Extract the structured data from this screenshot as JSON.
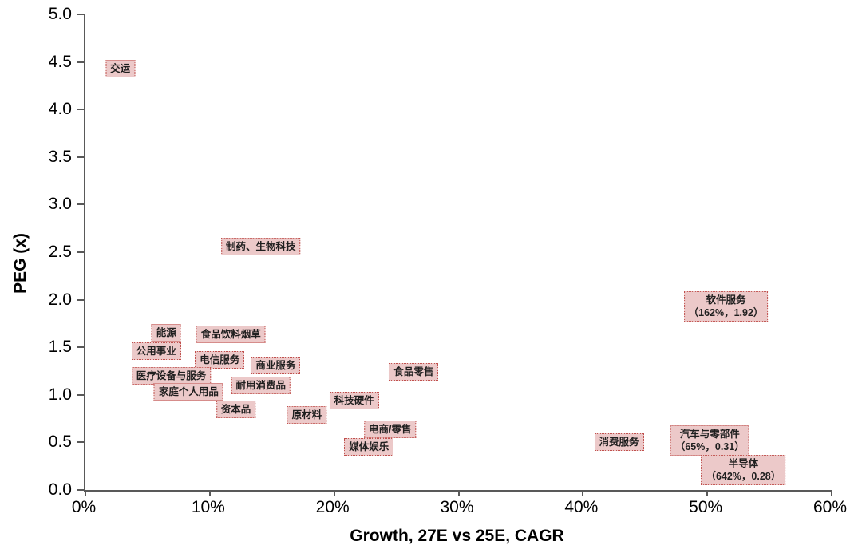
{
  "chart_data": {
    "type": "scatter",
    "title": "",
    "xlabel": "Growth, 27E vs 25E, CAGR",
    "ylabel": "PEG (x)",
    "xlim": [
      0,
      60
    ],
    "ylim": [
      0,
      5
    ],
    "grid": false,
    "legend": "none",
    "x_ticks": [
      {
        "value": 0,
        "label": "0%"
      },
      {
        "value": 10,
        "label": "10%"
      },
      {
        "value": 20,
        "label": "20%"
      },
      {
        "value": 30,
        "label": "30%"
      },
      {
        "value": 40,
        "label": "40%"
      },
      {
        "value": 50,
        "label": "50%"
      },
      {
        "value": 60,
        "label": "60%"
      }
    ],
    "y_ticks": [
      {
        "value": 0.0,
        "label": "0.0"
      },
      {
        "value": 0.5,
        "label": "0.5"
      },
      {
        "value": 1.0,
        "label": "1.0"
      },
      {
        "value": 1.5,
        "label": "1.5"
      },
      {
        "value": 2.0,
        "label": "2.0"
      },
      {
        "value": 2.5,
        "label": "2.5"
      },
      {
        "value": 3.0,
        "label": "3.0"
      },
      {
        "value": 3.5,
        "label": "3.5"
      },
      {
        "value": 4.0,
        "label": "4.0"
      },
      {
        "value": 4.5,
        "label": "4.5"
      },
      {
        "value": 5.0,
        "label": "5.0"
      }
    ],
    "points": [
      {
        "label": "交运",
        "growth_pct": 2.8,
        "peg": 4.43,
        "x_plot": 2.8,
        "y_plot": 4.43
      },
      {
        "label": "制药、生物科技",
        "growth_pct": 14.1,
        "peg": 2.56,
        "x_plot": 14.1,
        "y_plot": 2.56
      },
      {
        "label": "能源",
        "growth_pct": 6.5,
        "peg": 1.65,
        "x_plot": 6.5,
        "y_plot": 1.65
      },
      {
        "label": "食品饮料烟草",
        "growth_pct": 11.7,
        "peg": 1.64,
        "x_plot": 11.7,
        "y_plot": 1.64
      },
      {
        "label": "公用事业",
        "growth_pct": 5.7,
        "peg": 1.46,
        "x_plot": 5.7,
        "y_plot": 1.46
      },
      {
        "label": "电信服务",
        "growth_pct": 10.8,
        "peg": 1.37,
        "x_plot": 10.8,
        "y_plot": 1.37
      },
      {
        "label": "商业服务",
        "growth_pct": 15.3,
        "peg": 1.31,
        "x_plot": 15.3,
        "y_plot": 1.31
      },
      {
        "label": "医疗设备与服务",
        "growth_pct": 6.9,
        "peg": 1.2,
        "x_plot": 6.9,
        "y_plot": 1.2
      },
      {
        "label": "耐用消费品",
        "growth_pct": 14.1,
        "peg": 1.1,
        "x_plot": 14.1,
        "y_plot": 1.1
      },
      {
        "label": "家庭个人用品",
        "growth_pct": 8.3,
        "peg": 1.03,
        "x_plot": 8.3,
        "y_plot": 1.03
      },
      {
        "label": "资本品",
        "growth_pct": 12.1,
        "peg": 0.85,
        "x_plot": 12.1,
        "y_plot": 0.85
      },
      {
        "label": "食品零售",
        "growth_pct": 26.4,
        "peg": 1.24,
        "x_plot": 26.4,
        "y_plot": 1.24
      },
      {
        "label": "科技硬件",
        "growth_pct": 21.6,
        "peg": 0.94,
        "x_plot": 21.6,
        "y_plot": 0.94
      },
      {
        "label": "原材料",
        "growth_pct": 17.8,
        "peg": 0.79,
        "x_plot": 17.8,
        "y_plot": 0.79
      },
      {
        "label": "电商/零售",
        "growth_pct": 24.5,
        "peg": 0.64,
        "x_plot": 24.5,
        "y_plot": 0.64
      },
      {
        "label": "媒体娱乐",
        "growth_pct": 22.8,
        "peg": 0.45,
        "x_plot": 22.8,
        "y_plot": 0.45
      },
      {
        "label": "消费服务",
        "growth_pct": 42.9,
        "peg": 0.5,
        "x_plot": 42.9,
        "y_plot": 0.5
      },
      {
        "label": "软件服务",
        "growth_pct": 162,
        "peg": 1.92,
        "note": "（162%，1.92）",
        "x_plot": 51.5,
        "y_plot": 1.93
      },
      {
        "label": "汽车与零部件",
        "growth_pct": 65,
        "peg": 0.31,
        "note": "（65%，0.31）",
        "x_plot": 50.2,
        "y_plot": 0.52
      },
      {
        "label": "半导体",
        "growth_pct": 642,
        "peg": 0.28,
        "note": "（642%，0.28）",
        "x_plot": 52.9,
        "y_plot": 0.21
      }
    ],
    "style": {
      "box_fill": "#ecc9c9",
      "box_border": "#c0504d",
      "box_text": "#1f1f1f",
      "axis_color": "#595959",
      "tick_text": "#000000",
      "background": "#ffffff"
    }
  }
}
